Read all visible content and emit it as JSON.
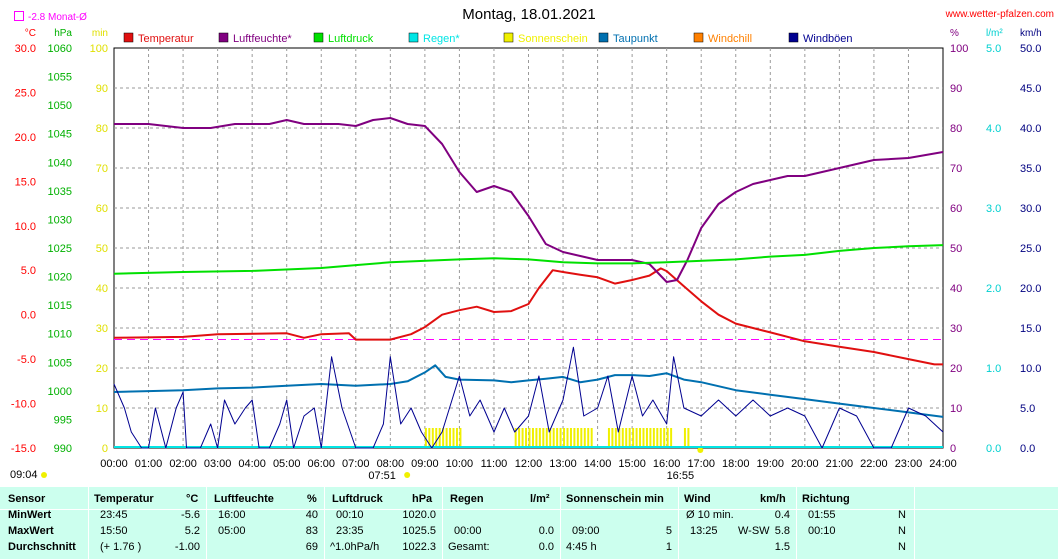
{
  "title": "Montag, 18.01.2021",
  "site": "www.wetter-pfalzen.com",
  "monat": "-2.8 Monat-Ø",
  "colors": {
    "temperatur": "#e01010",
    "luftfeuchte": "#800080",
    "luftdruck": "#00e000",
    "regen": "#00e5e5",
    "sonnenschein": "#f0f000",
    "taupunkt": "#0070b0",
    "windchill": "#ff8000",
    "windboeen": "#000090",
    "monat": "#ff00ff"
  },
  "chart_data": {
    "type": "line",
    "title": "Montag, 18.01.2021",
    "x_ticks": [
      "00:00",
      "01:00",
      "02:00",
      "03:00",
      "04:00",
      "05:00",
      "06:00",
      "07:00",
      "08:00",
      "09:00",
      "10:00",
      "11:00",
      "12:00",
      "13:00",
      "14:00",
      "15:00",
      "16:00",
      "17:00",
      "18:00",
      "19:00",
      "20:00",
      "21:00",
      "22:00",
      "23:00",
      "24:00"
    ],
    "sunrise": "07:51",
    "sunset": "16:55",
    "start_label": "09:04",
    "legend": [
      {
        "key": "temperatur",
        "label": "Temperatur"
      },
      {
        "key": "luftfeuchte",
        "label": "Luftfeuchte*"
      },
      {
        "key": "luftdruck",
        "label": "Luftdruck"
      },
      {
        "key": "regen",
        "label": "Regen*"
      },
      {
        "key": "sonnenschein",
        "label": "Sonnenschein"
      },
      {
        "key": "taupunkt",
        "label": "Taupunkt"
      },
      {
        "key": "windchill",
        "label": "Windchill"
      },
      {
        "key": "windboeen",
        "label": "Windböen"
      }
    ],
    "axes": {
      "temp": {
        "unit": "°C",
        "min": -15,
        "max": 30,
        "ticks": [
          "30.0",
          "25.0",
          "20.0",
          "15.0",
          "10.0",
          "5.0",
          "0.0",
          "-5.0",
          "-10.0",
          "-15.0"
        ]
      },
      "pressure": {
        "unit": "hPa",
        "min": 990,
        "max": 1060,
        "ticks": [
          "1060",
          "1055",
          "1050",
          "1045",
          "1040",
          "1035",
          "1030",
          "1025",
          "1020",
          "1015",
          "1010",
          "1005",
          "1000",
          "995",
          "990"
        ]
      },
      "minutes": {
        "unit": "min",
        "min": 0,
        "max": 100,
        "ticks": [
          "100",
          "90",
          "80",
          "70",
          "60",
          "50",
          "40",
          "30",
          "20",
          "10",
          "0"
        ]
      },
      "humidity": {
        "unit": "%",
        "min": 0,
        "max": 100,
        "ticks": [
          "100",
          "90",
          "80",
          "70",
          "60",
          "50",
          "40",
          "30",
          "20",
          "10",
          "0"
        ]
      },
      "rain": {
        "unit": "l/m²",
        "min": 0,
        "max": 5,
        "ticks": [
          "5.0",
          "4.0",
          "3.0",
          "2.0",
          "1.0",
          "0.0"
        ]
      },
      "wind": {
        "unit": "km/h",
        "min": 0,
        "max": 50,
        "ticks": [
          "50.0",
          "45.0",
          "40.0",
          "35.0",
          "30.0",
          "25.0",
          "20.0",
          "15.0",
          "10.0",
          "5.0",
          "0.0"
        ]
      }
    },
    "monat_line": -2.8,
    "series": [
      {
        "name": "Temperatur",
        "key": "temperatur",
        "axis": "temp",
        "points": [
          [
            0,
            -2.6
          ],
          [
            2,
            -2.5
          ],
          [
            3,
            -2.2
          ],
          [
            5,
            -2.1
          ],
          [
            5.5,
            -2.6
          ],
          [
            6,
            -2.2
          ],
          [
            6.8,
            -2.1
          ],
          [
            7,
            -2.8
          ],
          [
            8,
            -2.8
          ],
          [
            8.6,
            -2.2
          ],
          [
            9,
            -1.4
          ],
          [
            9.5,
            0.0
          ],
          [
            10,
            0.5
          ],
          [
            10.5,
            0.9
          ],
          [
            11,
            0.3
          ],
          [
            11.5,
            0.4
          ],
          [
            12,
            1.2
          ],
          [
            12.3,
            3.0
          ],
          [
            12.7,
            5.0
          ],
          [
            13,
            4.8
          ],
          [
            13.5,
            4.5
          ],
          [
            14,
            4.2
          ],
          [
            14.5,
            3.5
          ],
          [
            15,
            3.9
          ],
          [
            15.5,
            4.4
          ],
          [
            15.83,
            5.2
          ],
          [
            16,
            4.9
          ],
          [
            16.5,
            3.2
          ],
          [
            17,
            1.5
          ],
          [
            17.5,
            0.0
          ],
          [
            18,
            -1.0
          ],
          [
            19,
            -2.0
          ],
          [
            20,
            -3.0
          ],
          [
            21,
            -3.6
          ],
          [
            22,
            -4.2
          ],
          [
            23,
            -5.0
          ],
          [
            23.75,
            -5.6
          ],
          [
            24,
            -5.6
          ]
        ]
      },
      {
        "name": "Luftfeuchte*",
        "key": "luftfeuchte",
        "axis": "humidity",
        "points": [
          [
            0,
            81
          ],
          [
            1,
            81
          ],
          [
            1.5,
            80.5
          ],
          [
            2,
            80
          ],
          [
            2.8,
            80
          ],
          [
            3.5,
            81
          ],
          [
            4.5,
            81
          ],
          [
            5,
            82
          ],
          [
            5.5,
            81
          ],
          [
            6.5,
            81
          ],
          [
            7,
            80.5
          ],
          [
            7.5,
            82
          ],
          [
            8,
            82.5
          ],
          [
            8.5,
            81
          ],
          [
            9,
            80.5
          ],
          [
            9.5,
            76
          ],
          [
            10,
            69
          ],
          [
            10.5,
            64
          ],
          [
            11,
            65.5
          ],
          [
            11.5,
            64
          ],
          [
            12,
            58
          ],
          [
            12.5,
            51
          ],
          [
            13,
            49
          ],
          [
            13.5,
            48
          ],
          [
            14,
            47
          ],
          [
            15,
            47
          ],
          [
            15.5,
            46
          ],
          [
            16,
            41.5
          ],
          [
            16.3,
            42
          ],
          [
            16.6,
            47
          ],
          [
            17,
            55
          ],
          [
            17.5,
            61
          ],
          [
            18,
            64
          ],
          [
            18.5,
            66
          ],
          [
            19,
            67
          ],
          [
            19.5,
            68
          ],
          [
            20,
            68
          ],
          [
            20.5,
            69
          ],
          [
            21,
            70
          ],
          [
            21.5,
            71
          ],
          [
            22,
            72
          ],
          [
            23,
            72.5
          ],
          [
            24,
            74
          ]
        ]
      },
      {
        "name": "Luftdruck",
        "key": "luftdruck",
        "axis": "pressure",
        "points": [
          [
            0,
            1020.5
          ],
          [
            2,
            1020.8
          ],
          [
            4,
            1021.0
          ],
          [
            6,
            1021.5
          ],
          [
            7,
            1022.0
          ],
          [
            8,
            1022.5
          ],
          [
            10,
            1023.0
          ],
          [
            11,
            1023.2
          ],
          [
            12,
            1023.0
          ],
          [
            13,
            1022.5
          ],
          [
            14,
            1022.3
          ],
          [
            15,
            1022.3
          ],
          [
            16,
            1022.5
          ],
          [
            18,
            1023.0
          ],
          [
            19,
            1023.5
          ],
          [
            20,
            1023.8
          ],
          [
            21,
            1024.5
          ],
          [
            22,
            1025.0
          ],
          [
            23,
            1025.3
          ],
          [
            24,
            1025.5
          ]
        ]
      },
      {
        "name": "Taupunkt",
        "key": "taupunkt",
        "axis": "temp",
        "points": [
          [
            0,
            -8.7
          ],
          [
            1,
            -8.6
          ],
          [
            2,
            -8.5
          ],
          [
            3,
            -8.3
          ],
          [
            4,
            -8.2
          ],
          [
            5,
            -8.0
          ],
          [
            6,
            -7.8
          ],
          [
            7,
            -8.0
          ],
          [
            8,
            -7.8
          ],
          [
            8.5,
            -7.5
          ],
          [
            9,
            -6.5
          ],
          [
            9.3,
            -5.7
          ],
          [
            9.6,
            -7.0
          ],
          [
            10,
            -7.3
          ],
          [
            11,
            -7.4
          ],
          [
            11.5,
            -7.6
          ],
          [
            12,
            -7.4
          ],
          [
            12.5,
            -7.2
          ],
          [
            13,
            -7.0
          ],
          [
            13.5,
            -7.6
          ],
          [
            14,
            -7.3
          ],
          [
            14.5,
            -6.8
          ],
          [
            15,
            -6.8
          ],
          [
            15.5,
            -6.9
          ],
          [
            16,
            -6.6
          ],
          [
            16.5,
            -7.3
          ],
          [
            17,
            -7.6
          ],
          [
            18,
            -8.5
          ],
          [
            19,
            -9.0
          ],
          [
            20,
            -9.5
          ],
          [
            21,
            -10.0
          ],
          [
            22,
            -10.5
          ],
          [
            23,
            -11.0
          ],
          [
            24,
            -11.5
          ]
        ]
      },
      {
        "name": "Windböen",
        "key": "windboeen",
        "axis": "wind",
        "points": [
          [
            0,
            8
          ],
          [
            0.3,
            5
          ],
          [
            0.5,
            2
          ],
          [
            0.8,
            0
          ],
          [
            1,
            0
          ],
          [
            1.2,
            5
          ],
          [
            1.5,
            0
          ],
          [
            1.8,
            5
          ],
          [
            2,
            7
          ],
          [
            2.1,
            0
          ],
          [
            2.5,
            0
          ],
          [
            2.8,
            3
          ],
          [
            3,
            0
          ],
          [
            3.2,
            6
          ],
          [
            3.5,
            3
          ],
          [
            3.8,
            5
          ],
          [
            4,
            6
          ],
          [
            4.2,
            0
          ],
          [
            4.5,
            0
          ],
          [
            4.8,
            3
          ],
          [
            5,
            6
          ],
          [
            5.2,
            0
          ],
          [
            5.5,
            4
          ],
          [
            5.8,
            5
          ],
          [
            6,
            0
          ],
          [
            6.3,
            11.4
          ],
          [
            6.6,
            5
          ],
          [
            7,
            0
          ],
          [
            7.5,
            0
          ],
          [
            7.8,
            3
          ],
          [
            8,
            11.4
          ],
          [
            8.3,
            3
          ],
          [
            8.6,
            5
          ],
          [
            8.9,
            2
          ],
          [
            9.2,
            0
          ],
          [
            9.5,
            2
          ],
          [
            10,
            9
          ],
          [
            10.3,
            4
          ],
          [
            10.6,
            6
          ],
          [
            11,
            2
          ],
          [
            11.3,
            5
          ],
          [
            11.6,
            2
          ],
          [
            12,
            4
          ],
          [
            12.3,
            9
          ],
          [
            12.6,
            2
          ],
          [
            13,
            6
          ],
          [
            13.3,
            12.6
          ],
          [
            13.6,
            4
          ],
          [
            14,
            5
          ],
          [
            14.3,
            9
          ],
          [
            14.6,
            2
          ],
          [
            15,
            9
          ],
          [
            15.3,
            4
          ],
          [
            15.6,
            6
          ],
          [
            16,
            3
          ],
          [
            16.2,
            11.4
          ],
          [
            16.5,
            5
          ],
          [
            17,
            4
          ],
          [
            17.5,
            6
          ],
          [
            18,
            4
          ],
          [
            18.5,
            6
          ],
          [
            19,
            4
          ],
          [
            19.5,
            5
          ],
          [
            20,
            4
          ],
          [
            20.5,
            0
          ],
          [
            21,
            5
          ],
          [
            21.5,
            4
          ],
          [
            22,
            0
          ],
          [
            22.5,
            0
          ],
          [
            23,
            5
          ],
          [
            23.5,
            4
          ],
          [
            24,
            2
          ]
        ]
      }
    ],
    "sunshine_spans": [
      [
        9.0,
        10.0
      ],
      [
        11.6,
        13.8
      ],
      [
        14.3,
        16.1
      ],
      [
        16.5,
        16.7
      ]
    ]
  },
  "info": {
    "rows": [
      "Sensor",
      "MinWert",
      "MaxWert",
      "Durchschnitt"
    ],
    "temperatur": {
      "header": "Temperatur",
      "unit": "°C",
      "min_time": "23:45",
      "min_val": "-5.6",
      "max_time": "15:50",
      "max_val": "5.2",
      "avg_note": "(+ 1.76 )",
      "avg_val": "-1.00"
    },
    "luftfeuchte": {
      "header": "Luftfeuchte",
      "unit": "%",
      "min_time": "16:00",
      "min_val": "40",
      "max_time": "05:00",
      "max_val": "83",
      "avg_val": "69"
    },
    "luftdruck": {
      "header": "Luftdruck",
      "unit": "hPa",
      "min_time": "00:10",
      "min_val": "1020.0",
      "max_time": "23:35",
      "max_val": "1025.5",
      "avg_note": "^1.0hPa/h",
      "avg_val": "1022.3"
    },
    "regen": {
      "header": "Regen",
      "unit": "l/m²",
      "max_time": "00:00",
      "max_val": "0.0",
      "avg_note": "Gesamt:",
      "avg_val": "0.0"
    },
    "sonne": {
      "header": "Sonnenschein min",
      "max_time": "09:00",
      "max_val": "5",
      "avg_note": "4:45 h",
      "avg_val": "1"
    },
    "wind": {
      "header": "Wind",
      "unit": "km/h",
      "min_note": "Ø 10 min.",
      "min_val": "0.4",
      "max_time": "13:25",
      "max_dir": "W-SW",
      "max_val": "5.8",
      "avg_val": "1.5"
    },
    "richtung": {
      "header": "Richtung",
      "min_time": "01:55",
      "min_val": "N",
      "max_time": "00:10",
      "max_val": "N",
      "avg_val": "N"
    }
  }
}
